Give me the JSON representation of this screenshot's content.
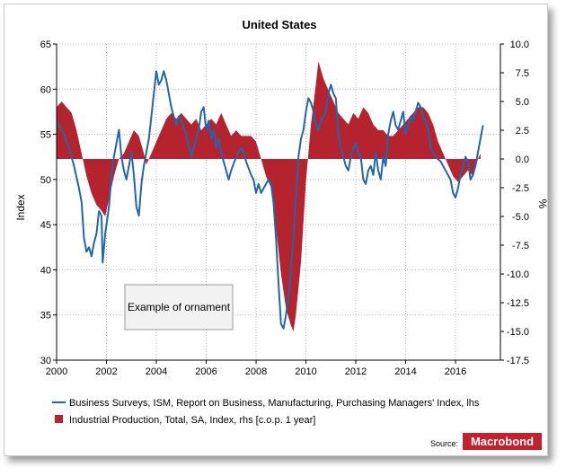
{
  "chart_data": {
    "type": "line",
    "title": "United States",
    "ylabel_left": "Index",
    "ylabel_right": "%",
    "x_ticks": [
      "2000",
      "2002",
      "2004",
      "2006",
      "2008",
      "2010",
      "2012",
      "2014",
      "2016"
    ],
    "y_left_ticks": [
      "30",
      "35",
      "40",
      "45",
      "50",
      "55",
      "60",
      "65"
    ],
    "y_right_ticks": [
      "-17.5",
      "-15.0",
      "-12.5",
      "-10.0",
      "-7.5",
      "-5.0",
      "-2.5",
      "0.0",
      "2.5",
      "5.0",
      "7.5",
      "10.0"
    ],
    "xlim": [
      2000,
      2017.8
    ],
    "ylim_left": [
      30,
      65
    ],
    "ylim_right": [
      -17.5,
      10
    ],
    "grid": true,
    "legend_placement": "bottom",
    "ornament": "Example of ornament",
    "source_label": "Source:",
    "source_brand": "Macrobond",
    "series": [
      {
        "name": "Business Surveys, ISM, Report on Business, Manufacturing, Purchasing Managers' Index, lhs",
        "type": "line",
        "axis": "left",
        "color": "#2166ac",
        "points": [
          [
            2000.0,
            56.5
          ],
          [
            2000.3,
            55.0
          ],
          [
            2000.5,
            53.5
          ],
          [
            2000.7,
            51.5
          ],
          [
            2000.9,
            49.0
          ],
          [
            2001.0,
            47.5
          ],
          [
            2001.1,
            43.5
          ],
          [
            2001.2,
            42.0
          ],
          [
            2001.3,
            42.5
          ],
          [
            2001.4,
            41.5
          ],
          [
            2001.5,
            43.0
          ],
          [
            2001.6,
            44.0
          ],
          [
            2001.7,
            46.5
          ],
          [
            2001.8,
            46.0
          ],
          [
            2001.85,
            40.8
          ],
          [
            2001.95,
            44.0
          ],
          [
            2002.1,
            47.0
          ],
          [
            2002.2,
            50.5
          ],
          [
            2002.3,
            52.5
          ],
          [
            2002.4,
            54.0
          ],
          [
            2002.5,
            55.5
          ],
          [
            2002.6,
            52.5
          ],
          [
            2002.7,
            51.0
          ],
          [
            2002.8,
            50.0
          ],
          [
            2002.9,
            51.5
          ],
          [
            2003.0,
            53.0
          ],
          [
            2003.1,
            50.5
          ],
          [
            2003.2,
            47.0
          ],
          [
            2003.3,
            46.0
          ],
          [
            2003.4,
            49.5
          ],
          [
            2003.5,
            51.5
          ],
          [
            2003.6,
            53.0
          ],
          [
            2003.7,
            54.5
          ],
          [
            2003.8,
            57.0
          ],
          [
            2003.9,
            59.5
          ],
          [
            2004.0,
            62.0
          ],
          [
            2004.1,
            60.5
          ],
          [
            2004.2,
            61.0
          ],
          [
            2004.3,
            62.0
          ],
          [
            2004.4,
            61.0
          ],
          [
            2004.5,
            59.5
          ],
          [
            2004.6,
            58.0
          ],
          [
            2004.7,
            57.0
          ],
          [
            2004.8,
            56.0
          ],
          [
            2004.9,
            57.0
          ],
          [
            2005.0,
            56.5
          ],
          [
            2005.2,
            55.0
          ],
          [
            2005.4,
            52.5
          ],
          [
            2005.5,
            53.5
          ],
          [
            2005.6,
            54.5
          ],
          [
            2005.7,
            55.5
          ],
          [
            2005.8,
            57.5
          ],
          [
            2005.9,
            58.0
          ],
          [
            2006.0,
            55.5
          ],
          [
            2006.1,
            56.5
          ],
          [
            2006.2,
            54.5
          ],
          [
            2006.3,
            55.5
          ],
          [
            2006.4,
            53.5
          ],
          [
            2006.5,
            54.5
          ],
          [
            2006.6,
            53.0
          ],
          [
            2006.7,
            52.0
          ],
          [
            2006.8,
            51.0
          ],
          [
            2006.9,
            50.0
          ],
          [
            2007.0,
            51.0
          ],
          [
            2007.2,
            52.5
          ],
          [
            2007.4,
            53.5
          ],
          [
            2007.5,
            53.0
          ],
          [
            2007.6,
            52.0
          ],
          [
            2007.8,
            50.5
          ],
          [
            2007.9,
            50.0
          ],
          [
            2008.0,
            48.5
          ],
          [
            2008.1,
            49.5
          ],
          [
            2008.2,
            48.5
          ],
          [
            2008.3,
            49.0
          ],
          [
            2008.5,
            50.0
          ],
          [
            2008.6,
            49.5
          ],
          [
            2008.7,
            47.5
          ],
          [
            2008.8,
            43.5
          ],
          [
            2008.9,
            38.5
          ],
          [
            2009.0,
            34.0
          ],
          [
            2009.1,
            33.5
          ],
          [
            2009.2,
            35.0
          ],
          [
            2009.3,
            37.0
          ],
          [
            2009.4,
            40.0
          ],
          [
            2009.5,
            43.5
          ],
          [
            2009.6,
            48.0
          ],
          [
            2009.7,
            52.5
          ],
          [
            2009.8,
            54.5
          ],
          [
            2009.9,
            55.5
          ],
          [
            2010.0,
            57.5
          ],
          [
            2010.1,
            59.0
          ],
          [
            2010.2,
            58.5
          ],
          [
            2010.3,
            57.5
          ],
          [
            2010.4,
            56.0
          ],
          [
            2010.5,
            55.5
          ],
          [
            2010.6,
            56.5
          ],
          [
            2010.8,
            57.5
          ],
          [
            2010.9,
            59.5
          ],
          [
            2011.0,
            60.5
          ],
          [
            2011.1,
            59.5
          ],
          [
            2011.2,
            59.0
          ],
          [
            2011.3,
            55.0
          ],
          [
            2011.4,
            53.5
          ],
          [
            2011.5,
            52.5
          ],
          [
            2011.6,
            51.5
          ],
          [
            2011.7,
            51.0
          ],
          [
            2011.8,
            52.5
          ],
          [
            2011.9,
            53.5
          ],
          [
            2012.0,
            54.0
          ],
          [
            2012.1,
            53.0
          ],
          [
            2012.2,
            52.5
          ],
          [
            2012.3,
            50.0
          ],
          [
            2012.4,
            49.5
          ],
          [
            2012.5,
            51.0
          ],
          [
            2012.6,
            51.5
          ],
          [
            2012.7,
            50.5
          ],
          [
            2012.8,
            53.0
          ],
          [
            2012.9,
            51.0
          ],
          [
            2013.0,
            50.0
          ],
          [
            2013.1,
            52.5
          ],
          [
            2013.2,
            51.5
          ],
          [
            2013.3,
            55.0
          ],
          [
            2013.4,
            56.5
          ],
          [
            2013.5,
            57.5
          ],
          [
            2013.6,
            56.0
          ],
          [
            2013.7,
            55.5
          ],
          [
            2013.8,
            56.5
          ],
          [
            2013.9,
            57.5
          ],
          [
            2014.0,
            55.0
          ],
          [
            2014.1,
            56.0
          ],
          [
            2014.2,
            57.0
          ],
          [
            2014.3,
            56.5
          ],
          [
            2014.4,
            57.5
          ],
          [
            2014.5,
            58.5
          ],
          [
            2014.6,
            58.0
          ],
          [
            2014.7,
            57.0
          ],
          [
            2014.8,
            56.5
          ],
          [
            2014.9,
            55.5
          ],
          [
            2015.0,
            53.5
          ],
          [
            2015.2,
            52.5
          ],
          [
            2015.4,
            52.0
          ],
          [
            2015.6,
            51.0
          ],
          [
            2015.8,
            50.0
          ],
          [
            2015.9,
            48.5
          ],
          [
            2016.0,
            48.0
          ],
          [
            2016.1,
            49.0
          ],
          [
            2016.2,
            50.5
          ],
          [
            2016.3,
            51.5
          ],
          [
            2016.4,
            52.5
          ],
          [
            2016.5,
            52.0
          ],
          [
            2016.6,
            50.0
          ],
          [
            2016.7,
            50.5
          ],
          [
            2016.8,
            51.5
          ],
          [
            2016.9,
            53.0
          ],
          [
            2017.0,
            54.5
          ],
          [
            2017.1,
            56.0
          ]
        ]
      },
      {
        "name": "Industrial Production, Total, SA, Index, rhs [c.o.p. 1 year]",
        "type": "area",
        "axis": "right",
        "color": "#b5232f",
        "points": [
          [
            2000.0,
            4.5
          ],
          [
            2000.2,
            5.0
          ],
          [
            2000.4,
            4.5
          ],
          [
            2000.6,
            4.0
          ],
          [
            2000.8,
            2.5
          ],
          [
            2001.0,
            0.5
          ],
          [
            2001.2,
            -1.5
          ],
          [
            2001.4,
            -3.0
          ],
          [
            2001.6,
            -4.0
          ],
          [
            2001.8,
            -4.5
          ],
          [
            2001.95,
            -5.0
          ],
          [
            2002.1,
            -3.5
          ],
          [
            2002.3,
            -1.5
          ],
          [
            2002.5,
            0.0
          ],
          [
            2002.7,
            0.5
          ],
          [
            2002.9,
            1.5
          ],
          [
            2003.1,
            2.5
          ],
          [
            2003.3,
            2.0
          ],
          [
            2003.5,
            0.5
          ],
          [
            2003.6,
            -0.5
          ],
          [
            2003.8,
            0.5
          ],
          [
            2004.0,
            1.5
          ],
          [
            2004.2,
            2.5
          ],
          [
            2004.4,
            3.5
          ],
          [
            2004.6,
            4.0
          ],
          [
            2004.8,
            3.5
          ],
          [
            2005.0,
            4.0
          ],
          [
            2005.2,
            3.5
          ],
          [
            2005.4,
            3.0
          ],
          [
            2005.6,
            3.5
          ],
          [
            2005.8,
            2.5
          ],
          [
            2006.0,
            3.0
          ],
          [
            2006.2,
            3.5
          ],
          [
            2006.4,
            3.0
          ],
          [
            2006.6,
            4.0
          ],
          [
            2006.8,
            3.0
          ],
          [
            2007.0,
            2.0
          ],
          [
            2007.2,
            2.5
          ],
          [
            2007.4,
            2.0
          ],
          [
            2007.6,
            2.0
          ],
          [
            2007.8,
            2.0
          ],
          [
            2008.0,
            1.5
          ],
          [
            2008.2,
            0.0
          ],
          [
            2008.4,
            -1.5
          ],
          [
            2008.6,
            -2.5
          ],
          [
            2008.8,
            -6.0
          ],
          [
            2009.0,
            -10.0
          ],
          [
            2009.2,
            -13.0
          ],
          [
            2009.4,
            -14.5
          ],
          [
            2009.5,
            -15.0
          ],
          [
            2009.6,
            -13.5
          ],
          [
            2009.8,
            -9.0
          ],
          [
            2010.0,
            -2.0
          ],
          [
            2010.2,
            3.0
          ],
          [
            2010.4,
            6.5
          ],
          [
            2010.5,
            8.5
          ],
          [
            2010.7,
            7.0
          ],
          [
            2010.9,
            6.0
          ],
          [
            2011.1,
            5.0
          ],
          [
            2011.3,
            4.0
          ],
          [
            2011.5,
            3.5
          ],
          [
            2011.7,
            3.0
          ],
          [
            2011.9,
            4.0
          ],
          [
            2012.1,
            3.5
          ],
          [
            2012.3,
            4.5
          ],
          [
            2012.5,
            4.0
          ],
          [
            2012.7,
            3.0
          ],
          [
            2012.9,
            2.5
          ],
          [
            2013.1,
            2.5
          ],
          [
            2013.3,
            2.0
          ],
          [
            2013.5,
            2.0
          ],
          [
            2013.7,
            2.5
          ],
          [
            2013.9,
            3.0
          ],
          [
            2014.1,
            3.5
          ],
          [
            2014.3,
            4.0
          ],
          [
            2014.5,
            4.5
          ],
          [
            2014.7,
            4.5
          ],
          [
            2014.9,
            4.0
          ],
          [
            2015.1,
            3.0
          ],
          [
            2015.3,
            1.5
          ],
          [
            2015.5,
            0.5
          ],
          [
            2015.7,
            -0.5
          ],
          [
            2015.9,
            -1.5
          ],
          [
            2016.1,
            -2.0
          ],
          [
            2016.3,
            -1.5
          ],
          [
            2016.5,
            -1.0
          ],
          [
            2016.7,
            -1.5
          ],
          [
            2016.9,
            0.0
          ],
          [
            2017.0,
            0.5
          ]
        ]
      }
    ]
  },
  "colors": {
    "line": "#2166ac",
    "fill": "#b5232f",
    "brand_bg": "#c4212e"
  }
}
